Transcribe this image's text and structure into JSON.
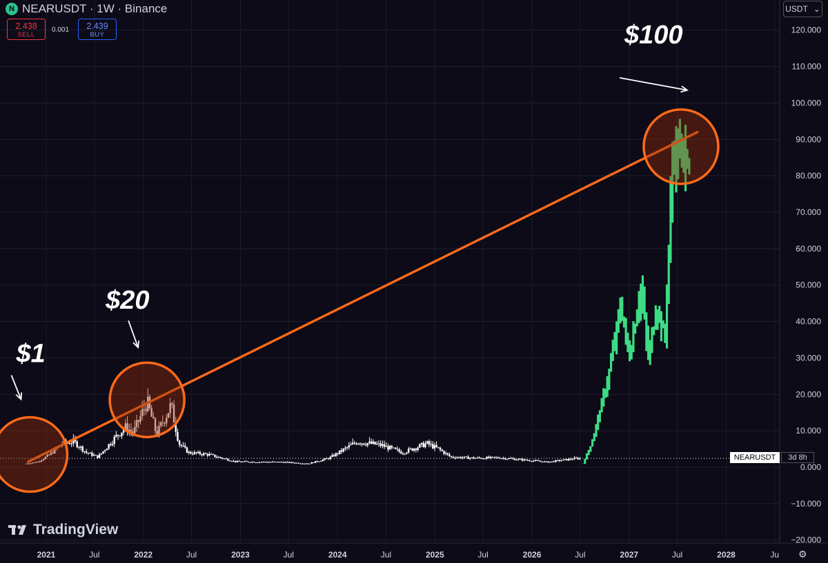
{
  "header": {
    "logo_text": "N",
    "title": "NEARUSDT · 1W · Binance",
    "sell_price": "2.438",
    "sell_label": "SELL",
    "buy_price": "2.439",
    "buy_label": "BUY",
    "spread": "0.001",
    "currency": "USDT"
  },
  "brand": {
    "name": "TradingView"
  },
  "price_tag": {
    "symbol": "NEARUSDT",
    "countdown": "3d 8h"
  },
  "colors": {
    "background": "#0c0b17",
    "historic": "#ffffff",
    "projection": "#3ddc84",
    "annotation": "#ff6a1a"
  },
  "chart_data": {
    "type": "candlestick",
    "y_ticks": [
      "120.000",
      "110.000",
      "100.000",
      "90.000",
      "80.000",
      "70.000",
      "60.000",
      "50.000",
      "40.000",
      "30.000",
      "20.000",
      "10.000",
      "0.000",
      "−10.000",
      "−20.000"
    ],
    "ylim": [
      -22,
      124
    ],
    "x_ticks": [
      "2021",
      "Jul",
      "2022",
      "Jul",
      "2023",
      "Jul",
      "2024",
      "Jul",
      "2025",
      "Jul",
      "2026",
      "Jul",
      "2027",
      "Jul",
      "2028",
      "Ju"
    ],
    "xlim": [
      "2020-08-01",
      "2028-07-20"
    ],
    "last_price": 2.438,
    "annotations": [
      {
        "label": "$1",
        "target_date": "2020-11-01",
        "target_price": 3.5
      },
      {
        "label": "$20",
        "target_date": "2022-01-15",
        "target_price": 18.5
      },
      {
        "label": "$100",
        "target_date": "2027-07-15",
        "target_price": 88
      }
    ],
    "trendline": {
      "start": [
        "2020-10-25",
        1.5
      ],
      "end": [
        "2027-09-15",
        92
      ]
    },
    "series": [
      {
        "color": "historic",
        "date_range": [
          "2020-10-20",
          "2026-07-05"
        ],
        "key_points": [
          [
            "2020-10-20",
            1.0
          ],
          [
            "2020-12-01",
            1.5
          ],
          [
            "2021-01-15",
            3.5
          ],
          [
            "2021-03-01",
            6.5
          ],
          [
            "2021-04-15",
            7.0
          ],
          [
            "2021-06-01",
            4.0
          ],
          [
            "2021-07-15",
            2.8
          ],
          [
            "2021-09-15",
            8.0
          ],
          [
            "2021-10-25",
            11.0
          ],
          [
            "2021-11-25",
            9.5
          ],
          [
            "2022-01-15",
            18.0
          ],
          [
            "2022-02-20",
            9.0
          ],
          [
            "2022-04-15",
            17.0
          ],
          [
            "2022-05-15",
            6.5
          ],
          [
            "2022-06-20",
            4.0
          ],
          [
            "2022-09-01",
            3.5
          ],
          [
            "2022-12-15",
            1.5
          ],
          [
            "2023-06-01",
            1.4
          ],
          [
            "2023-09-15",
            1.0
          ],
          [
            "2023-12-01",
            2.5
          ],
          [
            "2024-03-15",
            7.0
          ],
          [
            "2024-05-01",
            6.5
          ],
          [
            "2024-06-15",
            6.0
          ],
          [
            "2024-09-01",
            4.0
          ],
          [
            "2024-12-01",
            6.5
          ],
          [
            "2025-01-15",
            5.0
          ],
          [
            "2025-03-01",
            2.8
          ],
          [
            "2025-06-01",
            2.5
          ],
          [
            "2025-09-01",
            2.6
          ],
          [
            "2025-12-01",
            2.0
          ],
          [
            "2026-03-01",
            1.4
          ],
          [
            "2026-06-15",
            2.4
          ]
        ]
      },
      {
        "color": "projection",
        "date_range": [
          "2026-07-12",
          "2027-08-15"
        ],
        "key_points": [
          [
            "2026-07-12",
            1.0
          ],
          [
            "2026-08-15",
            7.0
          ],
          [
            "2026-10-15",
            25.0
          ],
          [
            "2026-12-01",
            45.0
          ],
          [
            "2027-01-01",
            30.0
          ],
          [
            "2027-02-15",
            50.0
          ],
          [
            "2027-03-15",
            30.0
          ],
          [
            "2027-04-15",
            45.0
          ],
          [
            "2027-05-15",
            35.0
          ],
          [
            "2027-06-15",
            88.0
          ],
          [
            "2027-08-15",
            86.0
          ]
        ]
      }
    ]
  }
}
